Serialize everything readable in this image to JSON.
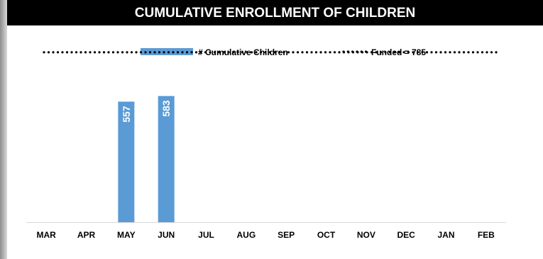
{
  "chart_data": {
    "type": "bar",
    "title": "CUMULATIVE ENROLLMENT OF CHILDREN",
    "categories": [
      "MAR",
      "APR",
      "MAY",
      "JUN",
      "JUL",
      "AUG",
      "SEP",
      "OCT",
      "NOV",
      "DEC",
      "JAN",
      "FEB"
    ],
    "series": [
      {
        "name": "# Cumulative Children",
        "values": [
          null,
          null,
          557,
          583,
          null,
          null,
          null,
          null,
          null,
          null,
          null,
          null
        ],
        "color": "#5b9bd5",
        "label_orientation": "vertical"
      }
    ],
    "reference_line": {
      "name": "Funded = 785",
      "value": 785,
      "style": "dotted",
      "color": "#000000"
    },
    "ylim": [
      0,
      850
    ],
    "grid": false,
    "legend_position": "top"
  }
}
